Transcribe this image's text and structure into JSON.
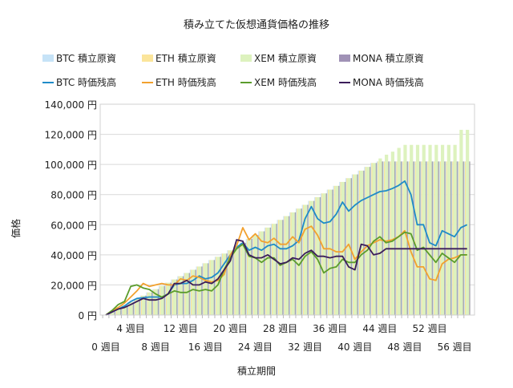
{
  "chart_data": {
    "type": "bar+line",
    "title": "積み立てた仮想通貨価格の推移",
    "xlabel": "積立期間",
    "ylabel": "価格",
    "ylim": [
      0,
      140000
    ],
    "yticks": [
      "0 円",
      "20,000 円",
      "40,000 円",
      "60,000 円",
      "80,000 円",
      "100,000 円",
      "120,000 円",
      "140,000 円"
    ],
    "ytick_values": [
      0,
      20000,
      40000,
      60000,
      80000,
      100000,
      120000,
      140000
    ],
    "x_weeks_range": [
      0,
      58
    ],
    "xticks_row1": [
      {
        "week": 4,
        "label": "4 週目"
      },
      {
        "week": 12,
        "label": "12 週目"
      },
      {
        "week": 20,
        "label": "20 週目"
      },
      {
        "week": 28,
        "label": "28 週目"
      },
      {
        "week": 36,
        "label": "36 週目"
      },
      {
        "week": 44,
        "label": "44 週目"
      },
      {
        "week": 52,
        "label": "52 週目"
      }
    ],
    "xticks_row2": [
      {
        "week": 0,
        "label": "0 週目"
      },
      {
        "week": 8,
        "label": "8 週目"
      },
      {
        "week": 16,
        "label": "16 週目"
      },
      {
        "week": 24,
        "label": "24 週目"
      },
      {
        "week": 32,
        "label": "32 週目"
      },
      {
        "week": 40,
        "label": "40 週目"
      },
      {
        "week": 48,
        "label": "48 週目"
      },
      {
        "week": 56,
        "label": "56 週目"
      }
    ],
    "grid": true,
    "legend_position": "top",
    "bar_series": [
      {
        "name": "BTC 積立原資",
        "color": "#c6e3f7",
        "values": [
          0,
          2150,
          4300,
          6450,
          8600,
          10750,
          12900,
          15050,
          17200,
          19350,
          21500,
          23650,
          25800,
          27950,
          30100,
          32250,
          34400,
          36550,
          38700,
          40850,
          43000,
          45500,
          48000,
          50600,
          53100,
          55600,
          58100,
          60600,
          63200,
          65700,
          68200,
          70700,
          73200,
          75800,
          78300,
          80800,
          83300,
          85800,
          88400,
          90900,
          93400,
          95900,
          98400,
          101000,
          102000,
          102000,
          102000,
          102000,
          102000,
          102000,
          102000,
          102000,
          102000,
          102000,
          102000,
          102000,
          102000,
          102000,
          102000
        ]
      },
      {
        "name": "ETH 積立原資",
        "color": "#fbe59b",
        "values": [
          0,
          2150,
          4300,
          6450,
          8600,
          10750,
          12900,
          15050,
          17200,
          19350,
          21500,
          23650,
          25800,
          27950,
          30100,
          32250,
          34400,
          36550,
          38700,
          40850,
          43000,
          45500,
          48000,
          50600,
          53100,
          55600,
          58100,
          60600,
          63200,
          65700,
          68200,
          70700,
          73200,
          75800,
          78300,
          80800,
          83300,
          85800,
          88400,
          90900,
          93400,
          95900,
          98400,
          101000,
          102000,
          102000,
          102000,
          102000,
          102000,
          102000,
          102000,
          102000,
          102000,
          102000,
          102000,
          102000,
          102000,
          102000,
          102000
        ]
      },
      {
        "name": "XEM 積立原資",
        "color": "#ddf2be",
        "values": [
          0,
          2150,
          4300,
          6450,
          8600,
          10750,
          12900,
          15050,
          17200,
          19350,
          21500,
          23650,
          25800,
          27950,
          30100,
          32250,
          34400,
          36550,
          38700,
          40850,
          43000,
          45500,
          48000,
          50600,
          53100,
          55600,
          58100,
          60600,
          63200,
          65700,
          68200,
          70700,
          73200,
          75800,
          78300,
          80800,
          83300,
          85800,
          88400,
          90900,
          93400,
          95900,
          98400,
          101000,
          104000,
          106500,
          108500,
          111000,
          113000,
          113000,
          113000,
          113000,
          113000,
          113000,
          113000,
          113000,
          113000,
          123000,
          123000
        ]
      },
      {
        "name": "MONA 積立原資",
        "color": "#a092b6",
        "values": [
          0,
          2150,
          4300,
          6450,
          8600,
          10750,
          12900,
          15050,
          17200,
          19350,
          21500,
          23650,
          25800,
          27950,
          30100,
          32250,
          34400,
          36550,
          38700,
          40850,
          43000,
          45500,
          48000,
          50600,
          53100,
          55600,
          58100,
          60600,
          63200,
          65700,
          68200,
          70700,
          73200,
          75800,
          78300,
          80800,
          83300,
          85800,
          88400,
          90900,
          93400,
          95900,
          98400,
          101000,
          102000,
          102000,
          102000,
          102000,
          102000,
          102000,
          102000,
          102000,
          102000,
          102000,
          102000,
          102000,
          102000,
          102000,
          102000
        ]
      }
    ],
    "line_series": [
      {
        "name": "BTC 時価残高",
        "color": "#1f8bc8",
        "values": [
          0,
          2000,
          4000,
          6000,
          9000,
          11000,
          11500,
          12000,
          12000,
          12000,
          14000,
          20000,
          21000,
          21000,
          23000,
          26000,
          24000,
          25000,
          28000,
          34000,
          40000,
          45000,
          48000,
          43000,
          45000,
          43000,
          46000,
          47000,
          44000,
          44000,
          46000,
          49500,
          64000,
          72000,
          64000,
          61000,
          62000,
          67000,
          75000,
          69000,
          73000,
          76000,
          78000,
          80000,
          82000,
          82500,
          84000,
          86000,
          89000,
          80000,
          60000,
          60000,
          48000,
          46000,
          56000,
          54000,
          52000,
          58000,
          60000
        ]
      },
      {
        "name": "ETH 時価残高",
        "color": "#f2a12e",
        "values": [
          0,
          3000,
          5000,
          8000,
          12000,
          16000,
          21000,
          19000,
          20000,
          21000,
          20000,
          20000,
          24000,
          23000,
          26000,
          25000,
          23000,
          22000,
          23000,
          27000,
          40000,
          46000,
          58000,
          50000,
          54000,
          49000,
          48000,
          51000,
          47000,
          47000,
          52000,
          48000,
          57000,
          59000,
          53000,
          44000,
          44000,
          42000,
          42000,
          47000,
          37000,
          42000,
          46000,
          48000,
          50000,
          49000,
          50000,
          52000,
          56000,
          42000,
          32000,
          32000,
          24000,
          23000,
          34000,
          37000,
          38000,
          40000,
          40000
        ]
      },
      {
        "name": "XEM 時価残高",
        "color": "#5b9c2c",
        "values": [
          0,
          3000,
          7000,
          9000,
          19000,
          20000,
          18000,
          17000,
          14000,
          12000,
          14000,
          16000,
          15000,
          15000,
          17000,
          16000,
          17000,
          16000,
          20000,
          30000,
          38000,
          44000,
          47000,
          39000,
          38000,
          35000,
          38000,
          38000,
          33000,
          35000,
          37000,
          33000,
          39000,
          42000,
          37000,
          28000,
          31000,
          32000,
          37000,
          35000,
          35000,
          40000,
          43000,
          49000,
          52000,
          48000,
          49000,
          52000,
          55000,
          54000,
          43000,
          45000,
          40000,
          35000,
          41000,
          38000,
          35000,
          40000,
          40000
        ]
      },
      {
        "name": "MONA 時価残高",
        "color": "#3b1d5a",
        "values": [
          0,
          2000,
          4000,
          5000,
          7000,
          9000,
          11000,
          10000,
          10000,
          11000,
          14000,
          21000,
          21000,
          23000,
          20000,
          20000,
          22000,
          21000,
          24000,
          30000,
          36000,
          50000,
          49000,
          40000,
          38000,
          38000,
          40000,
          37000,
          34000,
          35000,
          38000,
          37000,
          41000,
          43000,
          39000,
          39000,
          38000,
          39000,
          39000,
          32000,
          30000,
          47000,
          46000,
          40000,
          41000,
          44000,
          44000,
          44000,
          44000,
          44000,
          44000,
          44000,
          44000,
          44000,
          44000,
          44000,
          44000,
          44000,
          44000
        ]
      }
    ]
  }
}
